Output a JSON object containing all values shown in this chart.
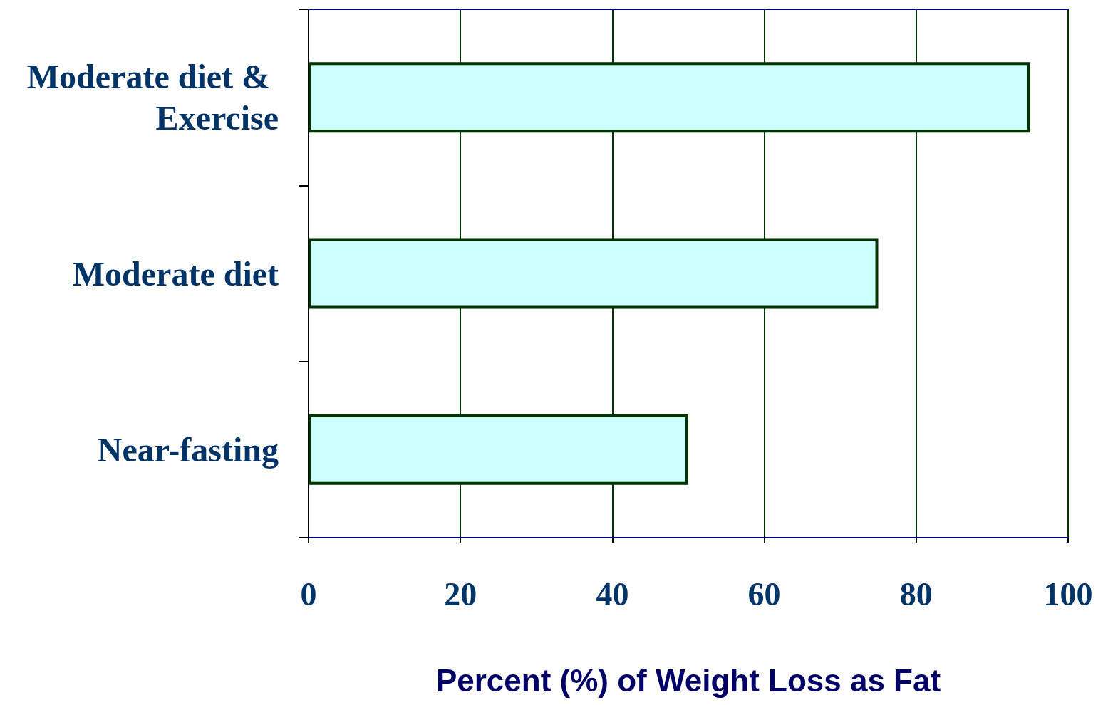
{
  "chart_data": {
    "type": "bar",
    "orientation": "horizontal",
    "xlabel": "Percent (%) of Weight Loss as Fat",
    "categories": [
      "Moderate diet & Exercise",
      "Moderate diet",
      "Near-fasting"
    ],
    "values": [
      95,
      75,
      50
    ],
    "color": "#ccffff",
    "xlim": [
      0,
      100
    ],
    "xticks": [
      0,
      20,
      40,
      60,
      80,
      100
    ],
    "grid": "x"
  }
}
